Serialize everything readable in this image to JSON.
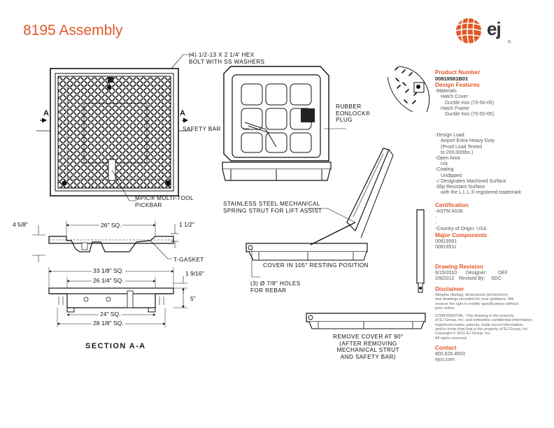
{
  "title": "8195 Assembly",
  "logo": {
    "text": "ej",
    "mark": "®"
  },
  "labels": {
    "hex_bolt": "(4) 1/2-13 X 2 1/4' HEX\nBOLT WITH SS WASHERS",
    "rubber_plug": "RUBBER\nEONLOCK®\nPLUG",
    "safety_bar": "SAFETY BAR",
    "mpic": "MPIC® MULTI-TOOL\nPICKBAR",
    "strut": "STAINLESS STEEL MECHANICAL\nSPRING STRUT FOR LIFT ASSIST",
    "cover_105": "COVER IN 105° RESTING POSITION",
    "t_gasket": "T-GASKET",
    "holes": "(3) Ø 7/8\" HOLES\nFOR REBAR",
    "remove_cover": "REMOVE COVER AT 90°\n(AFTER REMOVING\nMECHANICAL STRUT\nAND SAFETY BAR)",
    "section_mark": "A",
    "section_title": "SECTION A-A"
  },
  "dimensions": {
    "d_45_8": "4 5/8\"",
    "d_26_sq": "26\" SQ.",
    "d_1_1_2": "1 1/2\"",
    "d_33_1_8": "33 1/8\" SQ.",
    "d_26_1_4": "26 1/4\" SQ.",
    "d_1_9_16": "1 9/16\"",
    "d_5": "5\"",
    "d_24_sq": "24\" SQ.",
    "d_28_1_8": "28 1/8\" SQ."
  },
  "panel": {
    "product_number_h": "Product Number",
    "product_number": "00819581B01",
    "design_features_h": "Design Features",
    "materials": "-Materials",
    "hatch_cover": "Hatch Cover",
    "hatch_cover_mat": "Ductile Iron (70-50-05)",
    "hatch_frame": "Hatch Frame",
    "hatch_frame_mat": "Ductile Iron (70-50-05)",
    "design_load": "-Design Load",
    "load1": "Airport Extra Heavy Duty",
    "load2": "(Proof Load Tested",
    "load3": "to 200,000lbs.)",
    "open_area": "-Open Area",
    "open_area_val": "n/a",
    "coating": "-Coating",
    "coating_val": "Undipped",
    "machined": "-√ Designates Machined Surface",
    "slip1": "-Slip Resistant Surface",
    "slip2": "with the L.L.L.® registered trademark",
    "cert_h": "Certification",
    "cert1": "-ASTM A536",
    "cert2": "-",
    "cert3": "-",
    "cert4": "-Country of Origin: USA",
    "major_h": "Major Components",
    "comp1": "00819581",
    "comp2": "00819511",
    "rev_h": "Drawing Revision",
    "rev1_date": "6/15/2010",
    "rev1_label": "Designer:",
    "rev1_val": "DEF",
    "rev2_date": "2/8/2012",
    "rev2_label": "Revised By:",
    "rev2_val": "SDC",
    "disclaimer_h": "Disclaimer",
    "disc1": "Weights (lbs/kg), dimensions (inches/mm)",
    "disc2": "and drawings provided for your guidance. We",
    "disc3": "reserve the right to modify specifications without",
    "disc4": "prior notice.",
    "conf1": "CONFIDENTIAL: This drawing is the property",
    "conf2": "of EJ Group, Inc. and embodies confidential information,",
    "conf3": "registered marks, patents, trade secret information,",
    "conf4": "and/or know-how that is the property of EJ Group, Inc.",
    "conf5": "Copyright © 2011 EJ Group, Inc.",
    "conf6": "All rights reserved.",
    "contact_h": "Contact",
    "phone": "800.626.4653",
    "web": "ejco.com"
  },
  "colors": {
    "brand": "#e0592a",
    "ink": "#111111"
  }
}
